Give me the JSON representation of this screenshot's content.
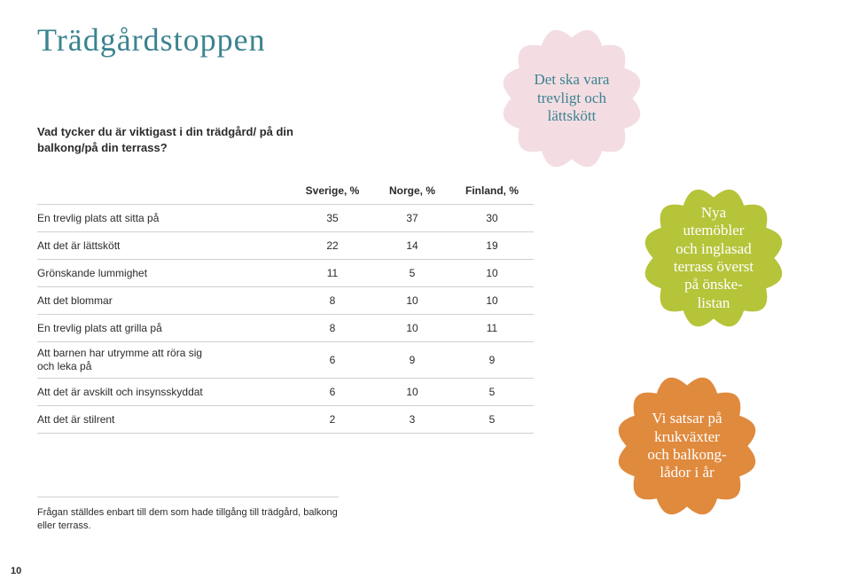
{
  "title": "Trädgårdstoppen",
  "question": "Vad tycker du är viktigast i din trädgård/\npå din balkong/på din terrass?",
  "footnote": "Frågan ställdes enbart till dem som hade tillgång till trädgård, balkong eller terrass.",
  "page_number": "10",
  "badges": {
    "pink": {
      "color": "#f3dde2",
      "text": "Det ska vara\ntrevligt och\nlättskött"
    },
    "green": {
      "color": "#b6c43a",
      "text": "Nya\nutemöbler\noch inglasad\nterrass överst\npå önske-\nlistan"
    },
    "orange": {
      "color": "#e08a3e",
      "text": "Vi satsar på\nkrukväxter\noch balkong-\nlådor i år"
    }
  },
  "table": {
    "columns": [
      "",
      "Sverige, %",
      "Norge, %",
      "Finland, %"
    ],
    "rows": [
      {
        "label": "En trevlig plats att sitta på",
        "v": [
          "35",
          "37",
          "30"
        ]
      },
      {
        "label": "Att det är lättskött",
        "v": [
          "22",
          "14",
          "19"
        ]
      },
      {
        "label": "Grönskande lummighet",
        "v": [
          "11",
          "5",
          "10"
        ]
      },
      {
        "label": "Att det blommar",
        "v": [
          "8",
          "10",
          "10"
        ]
      },
      {
        "label": "En trevlig plats att grilla på",
        "v": [
          "8",
          "10",
          "11"
        ]
      },
      {
        "label": "Att barnen har utrymme att röra sig\noch leka på",
        "v": [
          "6",
          "9",
          "9"
        ],
        "tall": true
      },
      {
        "label": "Att det är avskilt och insynsskyddat",
        "v": [
          "6",
          "10",
          "5"
        ]
      },
      {
        "label": "Att det är stilrent",
        "v": [
          "2",
          "3",
          "5"
        ]
      }
    ]
  }
}
